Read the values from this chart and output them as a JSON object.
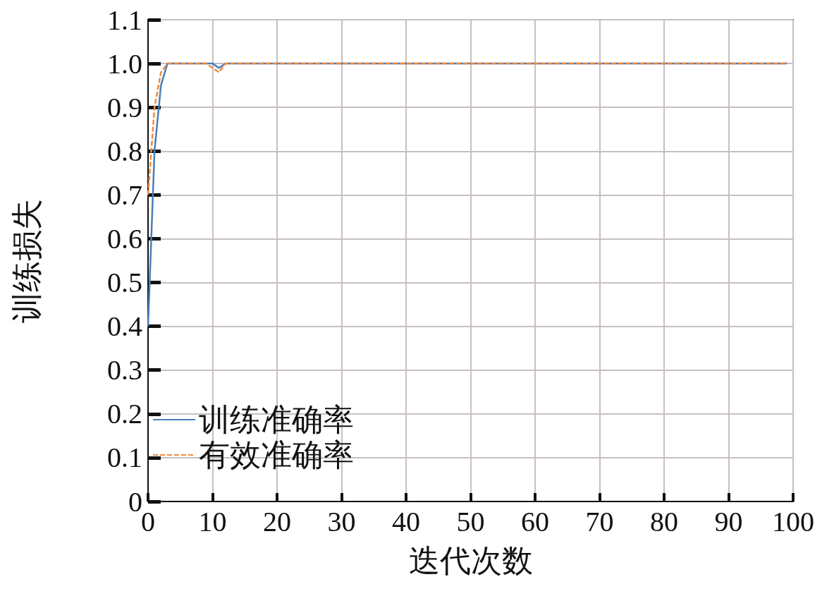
{
  "chart_data": {
    "type": "line",
    "xlabel": "迭代次数",
    "ylabel": "训练损失",
    "x": [
      0,
      1,
      2,
      3,
      4,
      5,
      6,
      7,
      8,
      9,
      10,
      11,
      12,
      13,
      15,
      20,
      30,
      40,
      50,
      60,
      70,
      80,
      90,
      99
    ],
    "series": [
      {
        "name": "训练准确率",
        "color": "#4a7ebb",
        "line_style": "solid",
        "values": [
          0.4,
          0.8,
          0.95,
          1.0,
          1.0,
          1.0,
          1.0,
          1.0,
          1.0,
          1.0,
          1.0,
          0.99,
          1.0,
          1.0,
          1.0,
          1.0,
          1.0,
          1.0,
          1.0,
          1.0,
          1.0,
          1.0,
          1.0,
          1.0
        ]
      },
      {
        "name": "有效准确率",
        "color": "#f08a3c",
        "line_style": "dashed",
        "values": [
          0.7,
          0.9,
          0.98,
          1.0,
          1.0,
          1.0,
          1.0,
          1.0,
          1.0,
          1.0,
          0.99,
          0.98,
          1.0,
          1.0,
          1.0,
          1.0,
          1.0,
          1.0,
          1.0,
          1.0,
          1.0,
          1.0,
          1.0,
          1.0
        ]
      }
    ],
    "xlim": [
      0,
      100
    ],
    "xticks": [
      0,
      10,
      20,
      30,
      40,
      50,
      60,
      70,
      80,
      90,
      100
    ],
    "ylim": [
      0,
      1.1
    ],
    "yticks": [
      0,
      0.1,
      0.2,
      0.3,
      0.4,
      0.5,
      0.6,
      0.7,
      0.8,
      0.9,
      {
        "value": 1,
        "label": "1.0"
      },
      1.1
    ],
    "grid": true,
    "legend": "bottom left",
    "marker": "none"
  }
}
